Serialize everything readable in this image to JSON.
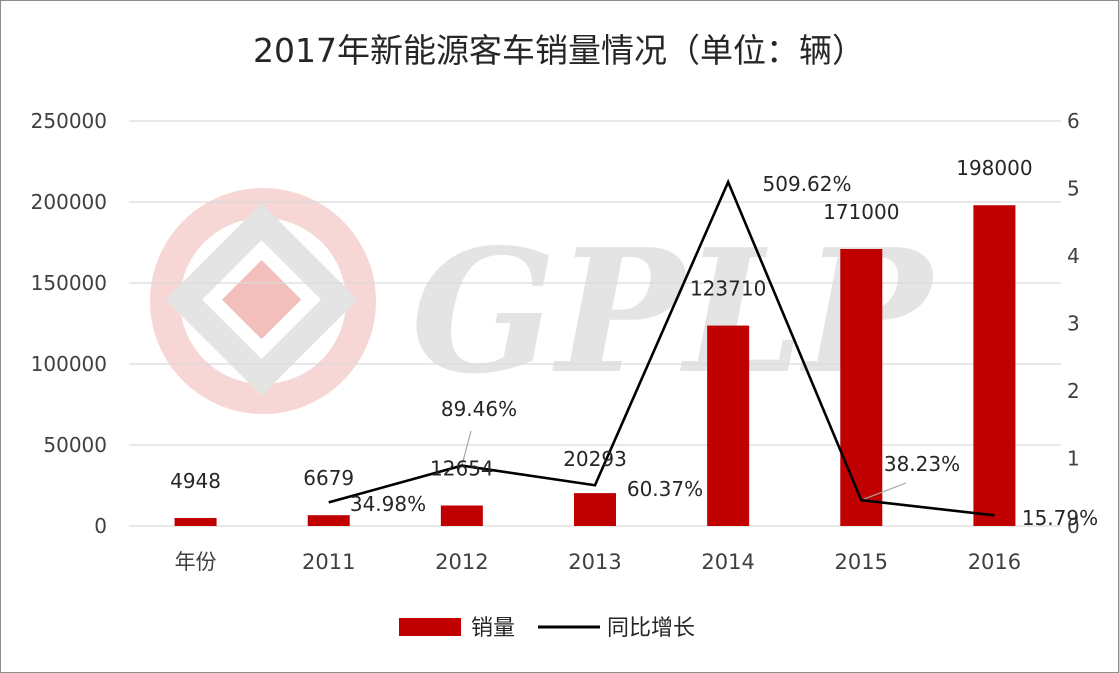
{
  "watermark": {
    "text": "GPLP",
    "ring_color": "#f2b8b4",
    "gray": "#cfcfcf",
    "logo_icon": "gplp-logo-icon"
  },
  "legend": {
    "bar_label": "销量",
    "line_label": "同比增长"
  },
  "colors": {
    "bar": "#c00000",
    "line": "#000000",
    "grid": "#d9d9d9",
    "leader": "#a6a6a6"
  },
  "chart_data": {
    "type": "bar",
    "title": "2017年新能源客车销量情况（单位：辆）",
    "categories": [
      "年份",
      "2011",
      "2012",
      "2013",
      "2014",
      "2015",
      "2016"
    ],
    "series": [
      {
        "name": "销量",
        "type": "bar",
        "axis": "left",
        "values": [
          4948,
          6679,
          12654,
          20293,
          123710,
          171000,
          198000
        ],
        "labels": [
          "4948",
          "6679",
          "12654",
          "20293",
          "123710",
          "171000",
          "198000"
        ]
      },
      {
        "name": "同比增长",
        "type": "line",
        "axis": "right",
        "values": [
          null,
          0.3498,
          0.8946,
          0.6037,
          5.0962,
          0.3823,
          0.1579
        ],
        "labels": [
          null,
          "34.98%",
          "89.46%",
          "60.37%",
          "509.62%",
          "38.23%",
          "15.79%"
        ]
      }
    ],
    "y_left": {
      "ylim": [
        0,
        250000
      ],
      "ticks": [
        "0",
        "50000",
        "100000",
        "150000",
        "200000",
        "250000"
      ]
    },
    "y_right": {
      "ylim": [
        0,
        6
      ],
      "ticks": [
        "0",
        "1",
        "2",
        "3",
        "4",
        "5",
        "6"
      ]
    },
    "grid": true,
    "legend_position": "bottom"
  }
}
